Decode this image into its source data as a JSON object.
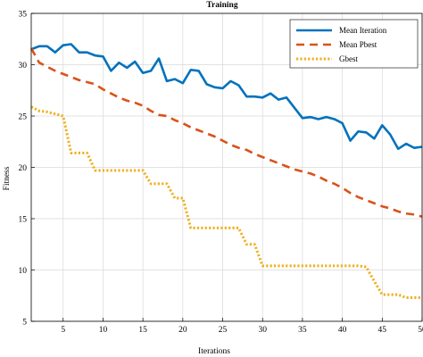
{
  "chart_data": {
    "type": "line",
    "title": "Training",
    "xlabel": "Iterations",
    "ylabel": "Fitness",
    "xlim": [
      1,
      50
    ],
    "ylim": [
      5,
      35
    ],
    "xticks": [
      5,
      10,
      15,
      20,
      25,
      30,
      35,
      40,
      45,
      50
    ],
    "yticks": [
      5,
      10,
      15,
      20,
      25,
      30,
      35
    ],
    "grid": true,
    "legend_position": "top-right",
    "x": [
      1,
      2,
      3,
      4,
      5,
      6,
      7,
      8,
      9,
      10,
      11,
      12,
      13,
      14,
      15,
      16,
      17,
      18,
      19,
      20,
      21,
      22,
      23,
      24,
      25,
      26,
      27,
      28,
      29,
      30,
      31,
      32,
      33,
      34,
      35,
      36,
      37,
      38,
      39,
      40,
      41,
      42,
      43,
      44,
      45,
      46,
      47,
      48,
      49,
      50
    ],
    "series": [
      {
        "name": "Mean Iteration",
        "color": "#0072BD",
        "style": "solid",
        "values": [
          31.5,
          31.8,
          31.8,
          31.2,
          31.9,
          32.0,
          31.2,
          31.2,
          30.9,
          30.8,
          29.4,
          30.2,
          29.7,
          30.3,
          29.2,
          29.4,
          30.6,
          28.4,
          28.6,
          28.2,
          29.5,
          29.4,
          28.1,
          27.8,
          27.7,
          28.4,
          28.0,
          26.9,
          26.9,
          26.8,
          27.2,
          26.6,
          26.8,
          25.8,
          24.8,
          24.9,
          24.7,
          24.9,
          24.7,
          24.3,
          22.6,
          23.5,
          23.4,
          22.8,
          24.1,
          23.2,
          21.8,
          22.3,
          21.9,
          22.0
        ]
      },
      {
        "name": "Mean Pbest",
        "color": "#D95319",
        "style": "dashed",
        "values": [
          31.6,
          30.2,
          29.8,
          29.4,
          29.1,
          28.8,
          28.5,
          28.3,
          28.1,
          27.6,
          27.2,
          26.8,
          26.5,
          26.3,
          26.0,
          25.5,
          25.1,
          25.0,
          24.6,
          24.3,
          23.9,
          23.6,
          23.3,
          23.0,
          22.6,
          22.2,
          21.9,
          21.7,
          21.3,
          21.0,
          20.7,
          20.4,
          20.1,
          19.8,
          19.6,
          19.4,
          19.1,
          18.7,
          18.4,
          18.0,
          17.5,
          17.1,
          16.8,
          16.5,
          16.2,
          16.0,
          15.7,
          15.5,
          15.4,
          15.2
        ]
      },
      {
        "name": "Gbest",
        "color": "#EDB120",
        "style": "dotted",
        "values": [
          25.9,
          25.5,
          25.4,
          25.2,
          25.0,
          21.4,
          21.4,
          21.4,
          19.7,
          19.7,
          19.7,
          19.7,
          19.7,
          19.7,
          19.7,
          18.4,
          18.4,
          18.4,
          17.0,
          17.0,
          14.1,
          14.1,
          14.1,
          14.1,
          14.1,
          14.1,
          14.1,
          12.5,
          12.5,
          10.4,
          10.4,
          10.4,
          10.4,
          10.4,
          10.4,
          10.4,
          10.4,
          10.4,
          10.4,
          10.4,
          10.4,
          10.4,
          10.3,
          8.9,
          7.6,
          7.6,
          7.6,
          7.3,
          7.3,
          7.3
        ]
      }
    ]
  }
}
